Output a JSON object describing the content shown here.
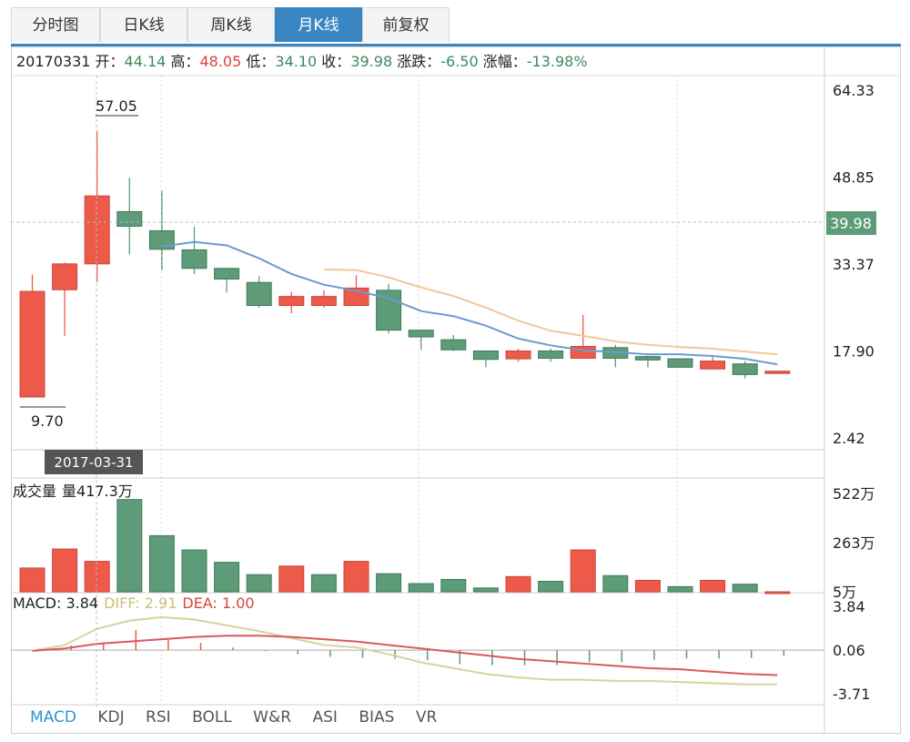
{
  "tabs": [
    {
      "label": "分时图",
      "active": false
    },
    {
      "label": "日K线",
      "active": false
    },
    {
      "label": "周K线",
      "active": false
    },
    {
      "label": "月K线",
      "active": true
    },
    {
      "label": "前复权",
      "active": false
    }
  ],
  "info": {
    "date": "20170331",
    "open_label": "开：",
    "open": "44.14",
    "high_label": "高：",
    "high": "48.05",
    "low_label": "低：",
    "low": "34.10",
    "close_label": "收：",
    "close": "39.98",
    "change_label": "涨跌：",
    "change": "-6.50",
    "pct_label": "涨幅：",
    "pct": "-13.98%"
  },
  "cursor_date": "2017-03-31",
  "cursor_price": "39.98",
  "max_label": "57.05",
  "min_label": "9.70",
  "volume": {
    "label": "成交量",
    "value_label": "量417.3万"
  },
  "macd": {
    "macd_label": "MACD: 3.84",
    "diff_label": "DIFF: 2.91",
    "dea_label": "DEA: 1.00"
  },
  "indicator_tabs": [
    {
      "label": "MACD",
      "active": true
    },
    {
      "label": "KDJ",
      "active": false
    },
    {
      "label": "RSI",
      "active": false
    },
    {
      "label": "BOLL",
      "active": false
    },
    {
      "label": "W&R",
      "active": false
    },
    {
      "label": "ASI",
      "active": false
    },
    {
      "label": "BIAS",
      "active": false
    },
    {
      "label": "VR",
      "active": false
    }
  ],
  "colors": {
    "up": "#ee5a49",
    "down": "#5e9b78",
    "ma5": "#6a9bd1",
    "ma10": "#f2c89a",
    "diff": "#d8d49a",
    "dea": "#d9595f",
    "accent": "#3a86c2",
    "cursor_price_bg": "#5e9b78"
  },
  "chart_data": {
    "type": "candlestick",
    "price_axis": {
      "ticks": [
        "64.33",
        "48.85",
        "33.37",
        "17.90",
        "2.42"
      ],
      "ylim": [
        2.42,
        64.33
      ]
    },
    "volume_axis": {
      "ticks": [
        "522万",
        "263万",
        "5万"
      ],
      "ylim": [
        5,
        522
      ]
    },
    "macd_axis": {
      "ticks": [
        "3.84",
        "0.06",
        "-3.71"
      ],
      "ylim": [
        -3.71,
        3.84
      ]
    },
    "candles": [
      {
        "o": 9.7,
        "c": 28.5,
        "h": 31.5,
        "l": 9.7
      },
      {
        "o": 28.8,
        "c": 33.4,
        "h": 33.6,
        "l": 20.6
      },
      {
        "o": 33.4,
        "c": 45.5,
        "h": 57.05,
        "l": 30.2
      },
      {
        "o": 42.7,
        "c": 40.1,
        "h": 48.7,
        "l": 35.1
      },
      {
        "o": 39.3,
        "c": 36.0,
        "h": 46.4,
        "l": 32.3
      },
      {
        "o": 35.9,
        "c": 32.6,
        "h": 40.0,
        "l": 31.6
      },
      {
        "o": 32.6,
        "c": 30.7,
        "h": 32.3,
        "l": 28.3
      },
      {
        "o": 30.1,
        "c": 26.0,
        "h": 31.2,
        "l": 25.6
      },
      {
        "o": 26.0,
        "c": 27.6,
        "h": 28.4,
        "l": 24.6
      },
      {
        "o": 26.0,
        "c": 27.6,
        "h": 28.7,
        "l": 25.6
      },
      {
        "o": 26.0,
        "c": 29.1,
        "h": 31.4,
        "l": 26.0
      },
      {
        "o": 28.7,
        "c": 21.6,
        "h": 29.8,
        "l": 21.0
      },
      {
        "o": 21.6,
        "c": 20.4,
        "h": 21.6,
        "l": 18.1
      },
      {
        "o": 19.9,
        "c": 18.1,
        "h": 20.7,
        "l": 17.9
      },
      {
        "o": 17.9,
        "c": 16.4,
        "h": 17.9,
        "l": 15.0
      },
      {
        "o": 16.5,
        "c": 17.9,
        "h": 18.3,
        "l": 16.0
      },
      {
        "o": 17.9,
        "c": 16.6,
        "h": 18.3,
        "l": 16.0
      },
      {
        "o": 16.6,
        "c": 18.7,
        "h": 24.3,
        "l": 16.6
      },
      {
        "o": 18.5,
        "c": 16.6,
        "h": 19.0,
        "l": 15.0
      },
      {
        "o": 16.9,
        "c": 16.3,
        "h": 17.1,
        "l": 15.0
      },
      {
        "o": 16.5,
        "c": 15.0,
        "h": 16.6,
        "l": 15.0
      },
      {
        "o": 14.7,
        "c": 16.1,
        "h": 17.1,
        "l": 14.6
      },
      {
        "o": 15.6,
        "c": 13.7,
        "h": 16.1,
        "l": 13.0
      },
      {
        "o": 13.9,
        "c": 14.3,
        "h": 14.3,
        "l": 13.9
      }
    ],
    "volumes": [
      {
        "v": 130,
        "dir": "up"
      },
      {
        "v": 230,
        "dir": "up"
      },
      {
        "v": 165,
        "dir": "up"
      },
      {
        "v": 490,
        "dir": "down"
      },
      {
        "v": 300,
        "dir": "down"
      },
      {
        "v": 225,
        "dir": "down"
      },
      {
        "v": 160,
        "dir": "down"
      },
      {
        "v": 95,
        "dir": "down"
      },
      {
        "v": 140,
        "dir": "up"
      },
      {
        "v": 95,
        "dir": "down"
      },
      {
        "v": 165,
        "dir": "up"
      },
      {
        "v": 100,
        "dir": "down"
      },
      {
        "v": 48,
        "dir": "down"
      },
      {
        "v": 70,
        "dir": "down"
      },
      {
        "v": 25,
        "dir": "down"
      },
      {
        "v": 85,
        "dir": "up"
      },
      {
        "v": 60,
        "dir": "down"
      },
      {
        "v": 225,
        "dir": "up"
      },
      {
        "v": 90,
        "dir": "down"
      },
      {
        "v": 65,
        "dir": "up"
      },
      {
        "v": 32,
        "dir": "down"
      },
      {
        "v": 65,
        "dir": "up"
      },
      {
        "v": 45,
        "dir": "down"
      },
      {
        "v": 5,
        "dir": "up"
      }
    ],
    "ma5": [
      null,
      null,
      null,
      null,
      36.5,
      37.3,
      36.7,
      34.4,
      31.6,
      29.7,
      28.6,
      27.3,
      25.0,
      24.1,
      22.4,
      20.1,
      18.9,
      18.0,
      17.7,
      17.3,
      17.3,
      17.0,
      16.5,
      15.5
    ],
    "ma10": [
      null,
      null,
      null,
      null,
      null,
      null,
      null,
      null,
      null,
      32.4,
      32.3,
      31.0,
      29.2,
      27.7,
      25.6,
      23.3,
      21.5,
      20.6,
      19.6,
      19.0,
      18.6,
      18.3,
      17.8,
      17.3
    ],
    "macd_hist": [
      0.3,
      0.9,
      1.5,
      3.84,
      2.3,
      1.4,
      0.5,
      -0.2,
      -0.8,
      -1.3,
      -1.5,
      -1.7,
      -1.9,
      -2.7,
      -2.9,
      -2.9,
      -2.9,
      -2.3,
      -2.3,
      -1.9,
      -1.6,
      -1.6,
      -1.5,
      -1.1
    ],
    "diff": [
      0.0,
      0.5,
      1.9,
      2.6,
      2.91,
      2.7,
      2.2,
      1.7,
      1.1,
      0.5,
      0.3,
      -0.3,
      -1.0,
      -1.5,
      -2.0,
      -2.3,
      -2.5,
      -2.5,
      -2.6,
      -2.6,
      -2.7,
      -2.8,
      -2.9,
      -2.9
    ],
    "dea": [
      0.0,
      0.2,
      0.6,
      0.8,
      1.0,
      1.2,
      1.3,
      1.3,
      1.2,
      1.0,
      0.8,
      0.5,
      0.2,
      -0.1,
      -0.4,
      -0.7,
      -0.9,
      -1.1,
      -1.3,
      -1.5,
      -1.6,
      -1.8,
      -2.0,
      -2.1
    ]
  }
}
